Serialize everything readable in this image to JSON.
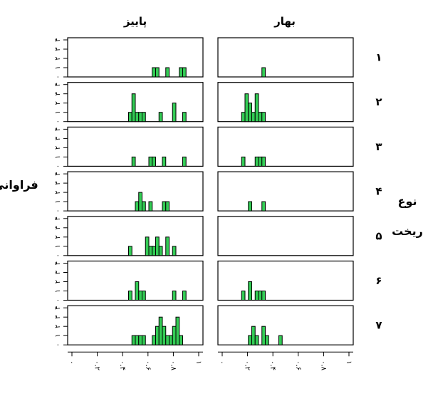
{
  "chart_data": {
    "type": "bar",
    "ylabel": "فراوانی",
    "row_title": [
      "نوع",
      "ریخت"
    ],
    "columns": [
      "بهار",
      "پاییز"
    ],
    "rows": [
      "۱",
      "۲",
      "۳",
      "۴",
      "۵",
      "۶",
      "۷"
    ],
    "y_ticks": [
      "۰",
      "۱",
      "۲",
      "۳",
      "۴"
    ],
    "ylim": [
      0,
      4
    ],
    "x_ticks_right": [
      "۰",
      "۰.۲",
      "۰.۴",
      "۰.۶",
      "۰.۸",
      "۱"
    ],
    "x_ticks_left": [
      "۰",
      "۰.۲",
      "۰.۴",
      "۰.۶",
      "۰.۸",
      "۱"
    ],
    "xlim": [
      0,
      1
    ],
    "bin_width": 0.025,
    "bar_color": "#33cc55",
    "panels": {
      "بهار": [
        [
          {
            "x": 0.325,
            "count": 1
          }
        ],
        [
          {
            "x": 0.175,
            "count": 1
          },
          {
            "x": 0.2,
            "count": 3
          },
          {
            "x": 0.225,
            "count": 2
          },
          {
            "x": 0.25,
            "count": 1
          },
          {
            "x": 0.275,
            "count": 3
          },
          {
            "x": 0.3,
            "count": 1
          },
          {
            "x": 0.325,
            "count": 1
          }
        ],
        [
          {
            "x": 0.175,
            "count": 1
          },
          {
            "x": 0.275,
            "count": 1
          },
          {
            "x": 0.3,
            "count": 1
          },
          {
            "x": 0.325,
            "count": 1
          }
        ],
        [
          {
            "x": 0.225,
            "count": 1
          },
          {
            "x": 0.325,
            "count": 1
          }
        ],
        [],
        [
          {
            "x": 0.175,
            "count": 1
          },
          {
            "x": 0.225,
            "count": 2
          },
          {
            "x": 0.275,
            "count": 1
          },
          {
            "x": 0.3,
            "count": 1
          },
          {
            "x": 0.325,
            "count": 1
          }
        ],
        [
          {
            "x": 0.225,
            "count": 1
          },
          {
            "x": 0.25,
            "count": 2
          },
          {
            "x": 0.275,
            "count": 1
          },
          {
            "x": 0.325,
            "count": 2
          },
          {
            "x": 0.35,
            "count": 1
          },
          {
            "x": 0.45,
            "count": 1
          }
        ]
      ],
      "پاییز": [
        [
          {
            "x": 0.625,
            "count": 1
          },
          {
            "x": 0.65,
            "count": 1
          },
          {
            "x": 0.725,
            "count": 1
          },
          {
            "x": 0.825,
            "count": 1
          },
          {
            "x": 0.85,
            "count": 1
          }
        ],
        [
          {
            "x": 0.45,
            "count": 1
          },
          {
            "x": 0.475,
            "count": 3
          },
          {
            "x": 0.5,
            "count": 1
          },
          {
            "x": 0.525,
            "count": 1
          },
          {
            "x": 0.55,
            "count": 1
          },
          {
            "x": 0.675,
            "count": 1
          },
          {
            "x": 0.775,
            "count": 2
          },
          {
            "x": 0.85,
            "count": 1
          }
        ],
        [
          {
            "x": 0.475,
            "count": 1
          },
          {
            "x": 0.6,
            "count": 1
          },
          {
            "x": 0.625,
            "count": 1
          },
          {
            "x": 0.7,
            "count": 1
          },
          {
            "x": 0.85,
            "count": 1
          }
        ],
        [
          {
            "x": 0.5,
            "count": 1
          },
          {
            "x": 0.525,
            "count": 2
          },
          {
            "x": 0.55,
            "count": 1
          },
          {
            "x": 0.6,
            "count": 1
          },
          {
            "x": 0.7,
            "count": 1
          },
          {
            "x": 0.725,
            "count": 1
          }
        ],
        [
          {
            "x": 0.45,
            "count": 1
          },
          {
            "x": 0.575,
            "count": 2
          },
          {
            "x": 0.6,
            "count": 1
          },
          {
            "x": 0.625,
            "count": 1
          },
          {
            "x": 0.65,
            "count": 2
          },
          {
            "x": 0.675,
            "count": 1
          },
          {
            "x": 0.725,
            "count": 2
          },
          {
            "x": 0.775,
            "count": 1
          }
        ],
        [
          {
            "x": 0.45,
            "count": 1
          },
          {
            "x": 0.5,
            "count": 2
          },
          {
            "x": 0.525,
            "count": 1
          },
          {
            "x": 0.55,
            "count": 1
          },
          {
            "x": 0.775,
            "count": 1
          },
          {
            "x": 0.85,
            "count": 1
          }
        ],
        [
          {
            "x": 0.475,
            "count": 1
          },
          {
            "x": 0.5,
            "count": 1
          },
          {
            "x": 0.525,
            "count": 1
          },
          {
            "x": 0.55,
            "count": 1
          },
          {
            "x": 0.625,
            "count": 1
          },
          {
            "x": 0.65,
            "count": 2
          },
          {
            "x": 0.675,
            "count": 3
          },
          {
            "x": 0.7,
            "count": 2
          },
          {
            "x": 0.725,
            "count": 1
          },
          {
            "x": 0.75,
            "count": 1
          },
          {
            "x": 0.775,
            "count": 2
          },
          {
            "x": 0.8,
            "count": 3
          },
          {
            "x": 0.825,
            "count": 1
          }
        ]
      ]
    }
  }
}
